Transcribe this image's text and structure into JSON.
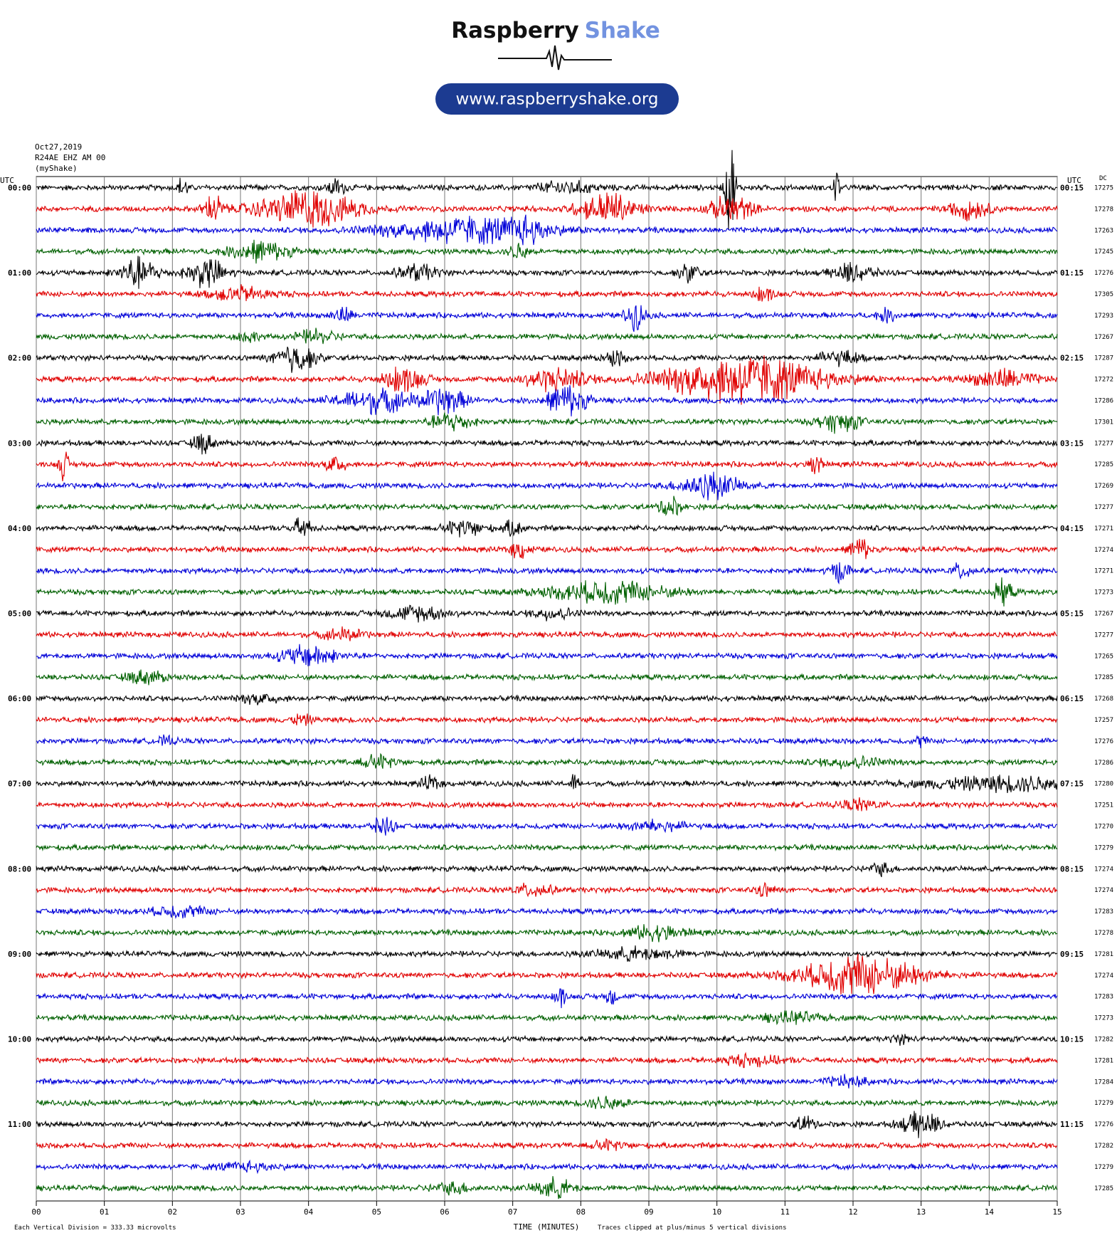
{
  "header": {
    "brand": "Raspberry",
    "brand_accent": "Shake",
    "url": "www.raspberryshake.org"
  },
  "chart_data": {
    "type": "helicorder",
    "date": "Oct27,2019",
    "station": "R24AE EHZ AM 00",
    "owner": "(myShake)",
    "left_axis_title": "UTC",
    "right_axis_title": "UTC",
    "dc_title": "DC",
    "xlabel": "TIME (MINUTES)",
    "scale_note": "Each Vertical Division =  333.33 microvolts",
    "clip_note": "Traces clipped at plus/minus 5 vertical divisions",
    "clip_divisions": 5,
    "noise_level": 0.28,
    "trace_colors": [
      "#000000",
      "#e00000",
      "#0000d8",
      "#006000"
    ],
    "xlim": [
      0,
      15
    ],
    "xticks": [
      {
        "value": 0,
        "label": "00"
      },
      {
        "value": 1,
        "label": "01"
      },
      {
        "value": 2,
        "label": "02"
      },
      {
        "value": 3,
        "label": "03"
      },
      {
        "value": 4,
        "label": "04"
      },
      {
        "value": 5,
        "label": "05"
      },
      {
        "value": 6,
        "label": "06"
      },
      {
        "value": 7,
        "label": "07"
      },
      {
        "value": 8,
        "label": "08"
      },
      {
        "value": 9,
        "label": "09"
      },
      {
        "value": 10,
        "label": "10"
      },
      {
        "value": 11,
        "label": "11"
      },
      {
        "value": 12,
        "label": "12"
      },
      {
        "value": 13,
        "label": "13"
      },
      {
        "value": 14,
        "label": "14"
      },
      {
        "value": 15,
        "label": "15"
      }
    ],
    "left_labels": [
      "00:00",
      "01:00",
      "02:00",
      "03:00",
      "04:00",
      "05:00",
      "06:00",
      "07:00",
      "08:00",
      "09:00",
      "10:00",
      "11:00"
    ],
    "right_labels": [
      "00:15",
      "01:15",
      "02:15",
      "03:15",
      "04:15",
      "05:15",
      "06:15",
      "07:15",
      "08:15",
      "09:15",
      "10:15",
      "11:15"
    ],
    "rows": [
      {
        "dc": 17275,
        "events": [
          [
            2.15,
            1.2,
            0.05
          ],
          [
            4.4,
            0.8,
            0.1
          ],
          [
            7.8,
            0.6,
            0.3
          ],
          [
            10.2,
            5,
            0.05
          ],
          [
            11.75,
            2.5,
            0.03
          ]
        ]
      },
      {
        "dc": 17278,
        "events": [
          [
            2.6,
            1.5,
            0.1
          ],
          [
            4.0,
            1.8,
            0.5
          ],
          [
            8.4,
            1.5,
            0.3
          ],
          [
            10.2,
            1.5,
            0.2
          ],
          [
            13.7,
            1,
            0.2
          ]
        ]
      },
      {
        "dc": 17263,
        "events": [
          [
            6.3,
            1.3,
            0.8
          ],
          [
            7.2,
            0.8,
            0.2
          ]
        ]
      },
      {
        "dc": 17245,
        "events": [
          [
            3.3,
            1,
            0.3
          ],
          [
            7.1,
            0.8,
            0.1
          ]
        ]
      },
      {
        "dc": 17276,
        "events": [
          [
            1.5,
            1.5,
            0.2
          ],
          [
            2.5,
            1.5,
            0.2
          ],
          [
            5.6,
            0.8,
            0.2
          ],
          [
            9.6,
            1,
            0.1
          ],
          [
            12.0,
            1,
            0.2
          ]
        ]
      },
      {
        "dc": 17305,
        "events": [
          [
            3.0,
            0.7,
            0.3
          ],
          [
            10.7,
            0.7,
            0.1
          ]
        ]
      },
      {
        "dc": 17293,
        "events": [
          [
            4.5,
            0.8,
            0.1
          ],
          [
            8.8,
            1.4,
            0.1
          ],
          [
            12.5,
            0.6,
            0.1
          ]
        ]
      },
      {
        "dc": 17267,
        "events": [
          [
            3.1,
            0.6,
            0.1
          ],
          [
            4.1,
            0.6,
            0.2
          ]
        ]
      },
      {
        "dc": 17287,
        "events": [
          [
            3.8,
            1.5,
            0.2
          ],
          [
            8.5,
            0.8,
            0.1
          ],
          [
            11.8,
            0.7,
            0.2
          ]
        ]
      },
      {
        "dc": 17272,
        "events": [
          [
            5.4,
            1.3,
            0.2
          ],
          [
            7.6,
            1.2,
            0.3
          ],
          [
            10.4,
            2.5,
            0.8
          ],
          [
            14.2,
            1,
            0.3
          ]
        ]
      },
      {
        "dc": 17286,
        "events": [
          [
            5.0,
            1.2,
            0.4
          ],
          [
            6.0,
            1.3,
            0.2
          ],
          [
            7.8,
            1.6,
            0.2
          ]
        ]
      },
      {
        "dc": 17301,
        "events": [
          [
            6.1,
            1,
            0.2
          ],
          [
            11.8,
            1,
            0.2
          ]
        ]
      },
      {
        "dc": 17277,
        "events": [
          [
            2.45,
            1,
            0.1
          ]
        ]
      },
      {
        "dc": 17285,
        "events": [
          [
            0.4,
            1.5,
            0.05
          ],
          [
            4.4,
            1,
            0.1
          ],
          [
            11.45,
            2,
            0.05
          ]
        ]
      },
      {
        "dc": 17269,
        "events": [
          [
            9.9,
            1.3,
            0.3
          ]
        ]
      },
      {
        "dc": 17277,
        "events": [
          [
            9.3,
            1.2,
            0.1
          ]
        ]
      },
      {
        "dc": 17271,
        "events": [
          [
            3.9,
            1,
            0.1
          ],
          [
            6.3,
            0.8,
            0.2
          ],
          [
            7.0,
            0.7,
            0.1
          ]
        ]
      },
      {
        "dc": 17274,
        "events": [
          [
            7.1,
            0.9,
            0.1
          ],
          [
            12.1,
            1.2,
            0.1
          ]
        ]
      },
      {
        "dc": 17271,
        "events": [
          [
            11.8,
            1,
            0.1
          ],
          [
            13.6,
            0.8,
            0.1
          ]
        ]
      },
      {
        "dc": 17273,
        "events": [
          [
            8.4,
            1.1,
            0.6
          ],
          [
            14.2,
            1.2,
            0.1
          ]
        ]
      },
      {
        "dc": 17267,
        "events": [
          [
            5.6,
            0.7,
            0.3
          ],
          [
            7.6,
            0.6,
            0.2
          ]
        ]
      },
      {
        "dc": 17277,
        "events": [
          [
            4.5,
            0.6,
            0.2
          ]
        ]
      },
      {
        "dc": 17265,
        "events": [
          [
            4.0,
            1,
            0.3
          ]
        ]
      },
      {
        "dc": 17285,
        "events": [
          [
            1.6,
            0.6,
            0.2
          ]
        ]
      },
      {
        "dc": 17268,
        "events": [
          [
            3.3,
            0.5,
            0.2
          ]
        ]
      },
      {
        "dc": 17257,
        "events": [
          [
            3.9,
            0.5,
            0.1
          ]
        ]
      },
      {
        "dc": 17276,
        "events": [
          [
            1.9,
            0.4,
            0.1
          ],
          [
            13,
            0.6,
            0.05
          ]
        ]
      },
      {
        "dc": 17286,
        "events": [
          [
            5.0,
            0.6,
            0.2
          ],
          [
            12,
            0.5,
            0.3
          ]
        ]
      },
      {
        "dc": 17280,
        "events": [
          [
            5.8,
            0.7,
            0.1
          ],
          [
            7.9,
            0.9,
            0.05
          ],
          [
            14.3,
            0.7,
            0.8
          ]
        ]
      },
      {
        "dc": 17251,
        "events": [
          [
            12.1,
            0.5,
            0.2
          ]
        ]
      },
      {
        "dc": 17270,
        "events": [
          [
            5.1,
            1,
            0.1
          ],
          [
            9.1,
            0.5,
            0.3
          ]
        ]
      },
      {
        "dc": 17279,
        "events": []
      },
      {
        "dc": 17274,
        "events": [
          [
            12.4,
            0.6,
            0.1
          ]
        ]
      },
      {
        "dc": 17274,
        "events": [
          [
            7.3,
            0.6,
            0.2
          ],
          [
            10.7,
            0.6,
            0.1
          ]
        ]
      },
      {
        "dc": 17283,
        "events": [
          [
            2.1,
            0.5,
            0.3
          ]
        ]
      },
      {
        "dc": 17278,
        "events": [
          [
            9.1,
            0.7,
            0.3
          ]
        ]
      },
      {
        "dc": 17281,
        "events": [
          [
            8.8,
            0.6,
            0.4
          ]
        ]
      },
      {
        "dc": 17274,
        "events": [
          [
            12.1,
            2,
            0.6
          ]
        ]
      },
      {
        "dc": 17283,
        "events": [
          [
            7.7,
            1.2,
            0.05
          ],
          [
            8.45,
            0.9,
            0.05
          ]
        ]
      },
      {
        "dc": 17273,
        "events": [
          [
            11.1,
            0.5,
            0.3
          ]
        ]
      },
      {
        "dc": 17282,
        "events": [
          [
            12.7,
            0.4,
            0.1
          ]
        ]
      },
      {
        "dc": 17281,
        "events": [
          [
            10.5,
            0.5,
            0.3
          ]
        ]
      },
      {
        "dc": 17284,
        "events": [
          [
            11.9,
            0.5,
            0.2
          ]
        ]
      },
      {
        "dc": 17279,
        "events": [
          [
            8.4,
            0.6,
            0.2
          ]
        ]
      },
      {
        "dc": 17276,
        "events": [
          [
            11.3,
            0.8,
            0.1
          ],
          [
            13.0,
            1.2,
            0.2
          ]
        ]
      },
      {
        "dc": 17282,
        "events": [
          [
            8.4,
            0.4,
            0.2
          ]
        ]
      },
      {
        "dc": 17279,
        "events": [
          [
            3.1,
            0.4,
            0.3
          ]
        ]
      },
      {
        "dc": 17285,
        "events": [
          [
            6.1,
            0.5,
            0.2
          ],
          [
            7.6,
            1,
            0.2
          ]
        ]
      }
    ]
  }
}
